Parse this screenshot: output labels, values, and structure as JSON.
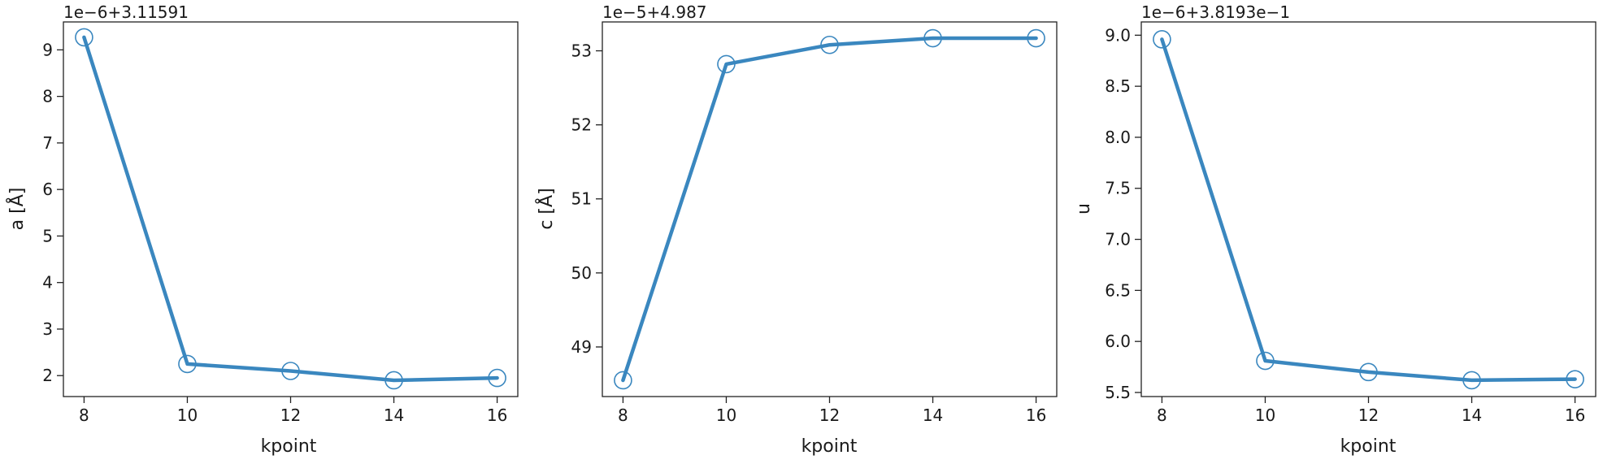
{
  "colors": {
    "series": "#3a87bf"
  },
  "chart_data": [
    {
      "type": "line",
      "xlabel": "kpoint",
      "ylabel": "a [Å]",
      "offset_text": "1e−6+3.11591",
      "x": [
        8,
        10,
        12,
        14,
        16
      ],
      "y": [
        9.27,
        2.25,
        2.1,
        1.9,
        1.95
      ],
      "xticks": [
        8,
        10,
        12,
        14,
        16
      ],
      "xtick_labels": [
        "8",
        "10",
        "12",
        "14",
        "16"
      ],
      "yticks": [
        2,
        3,
        4,
        5,
        6,
        7,
        8,
        9
      ],
      "ytick_labels": [
        "2",
        "3",
        "4",
        "5",
        "6",
        "7",
        "8",
        "9"
      ],
      "xlim": [
        7.6,
        16.4
      ],
      "ylim": [
        1.55,
        9.6
      ],
      "marker": "open-circle",
      "grid": false
    },
    {
      "type": "line",
      "xlabel": "kpoint",
      "ylabel": "c [Å]",
      "offset_text": "1e−5+4.987",
      "x": [
        8,
        10,
        12,
        14,
        16
      ],
      "y": [
        48.55,
        52.82,
        53.08,
        53.17,
        53.17
      ],
      "xticks": [
        8,
        10,
        12,
        14,
        16
      ],
      "xtick_labels": [
        "8",
        "10",
        "12",
        "14",
        "16"
      ],
      "yticks": [
        49,
        50,
        51,
        52,
        53
      ],
      "ytick_labels": [
        "49",
        "50",
        "51",
        "52",
        "53"
      ],
      "xlim": [
        7.6,
        16.4
      ],
      "ylim": [
        48.33,
        53.39
      ],
      "marker": "open-circle",
      "grid": false
    },
    {
      "type": "line",
      "xlabel": "kpoint",
      "ylabel": "u",
      "offset_text": "1e−6+3.8193e−1",
      "x": [
        8,
        10,
        12,
        14,
        16
      ],
      "y": [
        8.96,
        5.81,
        5.7,
        5.62,
        5.63
      ],
      "xticks": [
        8,
        10,
        12,
        14,
        16
      ],
      "xtick_labels": [
        "8",
        "10",
        "12",
        "14",
        "16"
      ],
      "yticks": [
        5.5,
        6.0,
        6.5,
        7.0,
        7.5,
        8.0,
        8.5,
        9.0
      ],
      "ytick_labels": [
        "5.5",
        "6.0",
        "6.5",
        "7.0",
        "7.5",
        "8.0",
        "8.5",
        "9.0"
      ],
      "xlim": [
        7.6,
        16.4
      ],
      "ylim": [
        5.46,
        9.13
      ],
      "marker": "open-circle",
      "grid": false
    }
  ]
}
